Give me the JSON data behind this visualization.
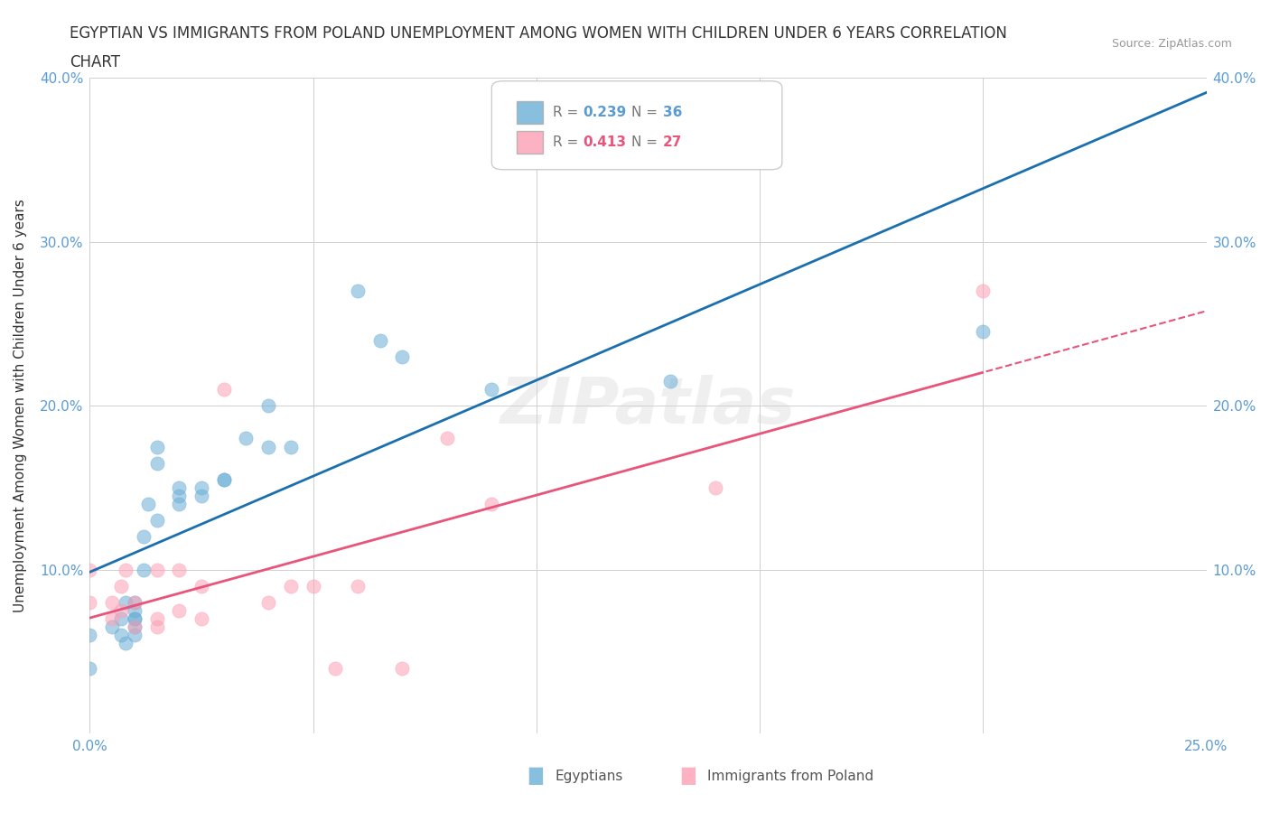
{
  "title_line1": "EGYPTIAN VS IMMIGRANTS FROM POLAND UNEMPLOYMENT AMONG WOMEN WITH CHILDREN UNDER 6 YEARS CORRELATION",
  "title_line2": "CHART",
  "source": "Source: ZipAtlas.com",
  "ylabel": "Unemployment Among Women with Children Under 6 years",
  "xlim": [
    0.0,
    0.25
  ],
  "ylim": [
    0.0,
    0.4
  ],
  "xticks": [
    0.0,
    0.05,
    0.1,
    0.15,
    0.2,
    0.25
  ],
  "yticks": [
    0.0,
    0.1,
    0.2,
    0.3,
    0.4
  ],
  "legend_r1": "0.239",
  "legend_n1": "36",
  "legend_r2": "0.413",
  "legend_n2": "27",
  "color_egyptian": "#6baed6",
  "color_polish": "#fc9fb5",
  "trendline_egyptian_color": "#1a6faf",
  "trendline_polish_color": "#e8547a",
  "watermark": "ZIPatlas",
  "background_color": "#ffffff",
  "scatter_alpha": 0.55,
  "scatter_size": 120,
  "egyptians_x": [
    0.0,
    0.0,
    0.005,
    0.007,
    0.007,
    0.008,
    0.008,
    0.01,
    0.01,
    0.01,
    0.01,
    0.01,
    0.01,
    0.012,
    0.012,
    0.013,
    0.015,
    0.015,
    0.015,
    0.02,
    0.02,
    0.02,
    0.025,
    0.025,
    0.03,
    0.03,
    0.035,
    0.04,
    0.04,
    0.045,
    0.06,
    0.065,
    0.07,
    0.09,
    0.13,
    0.2
  ],
  "egyptians_y": [
    0.04,
    0.06,
    0.065,
    0.06,
    0.07,
    0.055,
    0.08,
    0.07,
    0.065,
    0.07,
    0.075,
    0.08,
    0.06,
    0.1,
    0.12,
    0.14,
    0.13,
    0.165,
    0.175,
    0.14,
    0.145,
    0.15,
    0.145,
    0.15,
    0.155,
    0.155,
    0.18,
    0.2,
    0.175,
    0.175,
    0.27,
    0.24,
    0.23,
    0.21,
    0.215,
    0.245
  ],
  "polish_x": [
    0.0,
    0.0,
    0.005,
    0.005,
    0.007,
    0.007,
    0.008,
    0.01,
    0.01,
    0.015,
    0.015,
    0.015,
    0.02,
    0.02,
    0.025,
    0.025,
    0.03,
    0.04,
    0.045,
    0.05,
    0.055,
    0.06,
    0.07,
    0.08,
    0.09,
    0.14,
    0.2
  ],
  "polish_y": [
    0.08,
    0.1,
    0.07,
    0.08,
    0.09,
    0.075,
    0.1,
    0.065,
    0.08,
    0.1,
    0.065,
    0.07,
    0.1,
    0.075,
    0.07,
    0.09,
    0.21,
    0.08,
    0.09,
    0.09,
    0.04,
    0.09,
    0.04,
    0.18,
    0.14,
    0.15,
    0.27
  ]
}
